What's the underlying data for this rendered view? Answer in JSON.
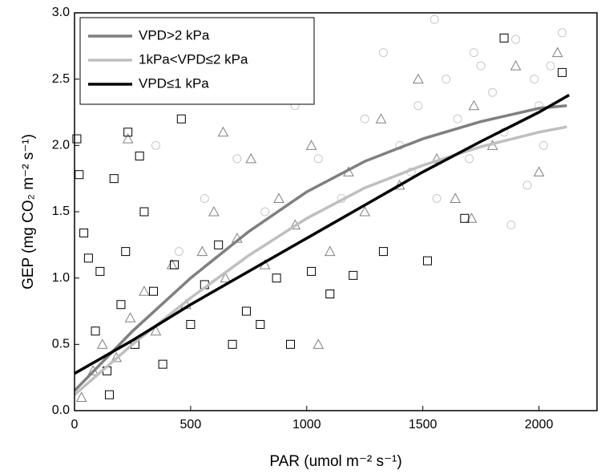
{
  "chart_data": {
    "type": "scatter",
    "x_label": "PAR (umol m⁻² s⁻¹)",
    "y_label": "GEP (mg CO₂ m⁻² s⁻¹)",
    "xlim": [
      0,
      2250
    ],
    "ylim": [
      0,
      3
    ],
    "xticks": [
      0,
      500,
      1000,
      1500,
      2000
    ],
    "yticks": [
      {
        "value": 0,
        "label": "0.0"
      },
      0.5,
      {
        "value": 1,
        "label": "1.0"
      },
      1.5,
      {
        "value": 2,
        "label": "2.0"
      },
      2.5,
      {
        "value": 3,
        "label": "3.0"
      }
    ],
    "series": [
      {
        "name": "VPD>2 kPa",
        "color": "#7f7f7f",
        "marker": "circle",
        "marker_color": "#c8c8c8",
        "x": [
          350,
          450,
          560,
          700,
          820,
          950,
          1050,
          1150,
          1250,
          1330,
          1400,
          1480,
          1550,
          1600,
          1650,
          1700,
          1750,
          1800,
          1850,
          1900,
          1950,
          2000,
          2050,
          2100,
          1560,
          1720,
          1880,
          2020,
          1450,
          1980
        ],
        "y": [
          2.0,
          1.2,
          1.6,
          1.9,
          1.5,
          2.3,
          1.9,
          1.6,
          2.2,
          2.7,
          2.0,
          2.3,
          2.95,
          2.5,
          2.2,
          1.9,
          2.6,
          2.4,
          2.1,
          2.8,
          1.7,
          2.3,
          2.6,
          2.85,
          1.6,
          2.7,
          1.4,
          2.0,
          1.8,
          2.5
        ],
        "fit": {
          "x": [
            0,
            250,
            500,
            750,
            1000,
            1250,
            1500,
            1750,
            2000,
            2120
          ],
          "y": [
            0.15,
            0.6,
            1.0,
            1.35,
            1.65,
            1.88,
            2.05,
            2.18,
            2.28,
            2.3
          ]
        }
      },
      {
        "name": "1kPa<VPD≤2 kPa",
        "color": "#bfbfbf",
        "marker": "triangle",
        "marker_color": "#808080",
        "x": [
          30,
          80,
          120,
          180,
          240,
          300,
          350,
          420,
          480,
          550,
          600,
          650,
          700,
          760,
          820,
          880,
          950,
          1020,
          1100,
          1180,
          1250,
          1320,
          1400,
          1480,
          1560,
          1640,
          1720,
          1800,
          1900,
          2000,
          2080,
          230,
          640,
          1050,
          1710
        ],
        "y": [
          0.1,
          0.3,
          0.5,
          0.4,
          0.7,
          0.9,
          0.6,
          1.1,
          0.8,
          1.2,
          1.5,
          1.0,
          1.3,
          1.9,
          1.1,
          1.6,
          1.4,
          2.0,
          1.2,
          1.8,
          1.5,
          2.2,
          1.7,
          2.5,
          1.9,
          1.6,
          2.3,
          2.0,
          2.6,
          1.8,
          2.7,
          2.05,
          2.1,
          0.5,
          1.45
        ],
        "fit": {
          "x": [
            0,
            250,
            500,
            750,
            1000,
            1250,
            1500,
            1750,
            2000,
            2120
          ],
          "y": [
            0.12,
            0.5,
            0.85,
            1.17,
            1.45,
            1.68,
            1.85,
            1.99,
            2.1,
            2.14
          ]
        }
      },
      {
        "name": "VPD≤1 kPa",
        "color": "#000000",
        "marker": "square",
        "marker_color": "#000000",
        "x": [
          10,
          20,
          40,
          60,
          90,
          110,
          140,
          170,
          200,
          230,
          260,
          300,
          340,
          380,
          430,
          460,
          500,
          560,
          620,
          680,
          740,
          800,
          870,
          930,
          1020,
          1100,
          1200,
          1330,
          1520,
          1680,
          1850,
          2100,
          220,
          280,
          150
        ],
        "y": [
          2.05,
          1.78,
          1.34,
          1.15,
          0.6,
          1.05,
          0.3,
          1.75,
          0.8,
          2.1,
          0.5,
          1.5,
          0.9,
          0.35,
          1.1,
          2.2,
          0.65,
          0.95,
          1.25,
          0.5,
          0.75,
          0.65,
          1.0,
          0.5,
          1.05,
          0.88,
          1.02,
          1.2,
          1.13,
          1.45,
          2.81,
          2.55,
          1.2,
          1.92,
          0.12
        ],
        "fit": {
          "x": [
            0,
            250,
            500,
            750,
            1000,
            1250,
            1500,
            1750,
            2000,
            2130
          ],
          "y": [
            0.28,
            0.53,
            0.8,
            1.05,
            1.3,
            1.55,
            1.8,
            2.03,
            2.25,
            2.38
          ]
        }
      }
    ]
  }
}
